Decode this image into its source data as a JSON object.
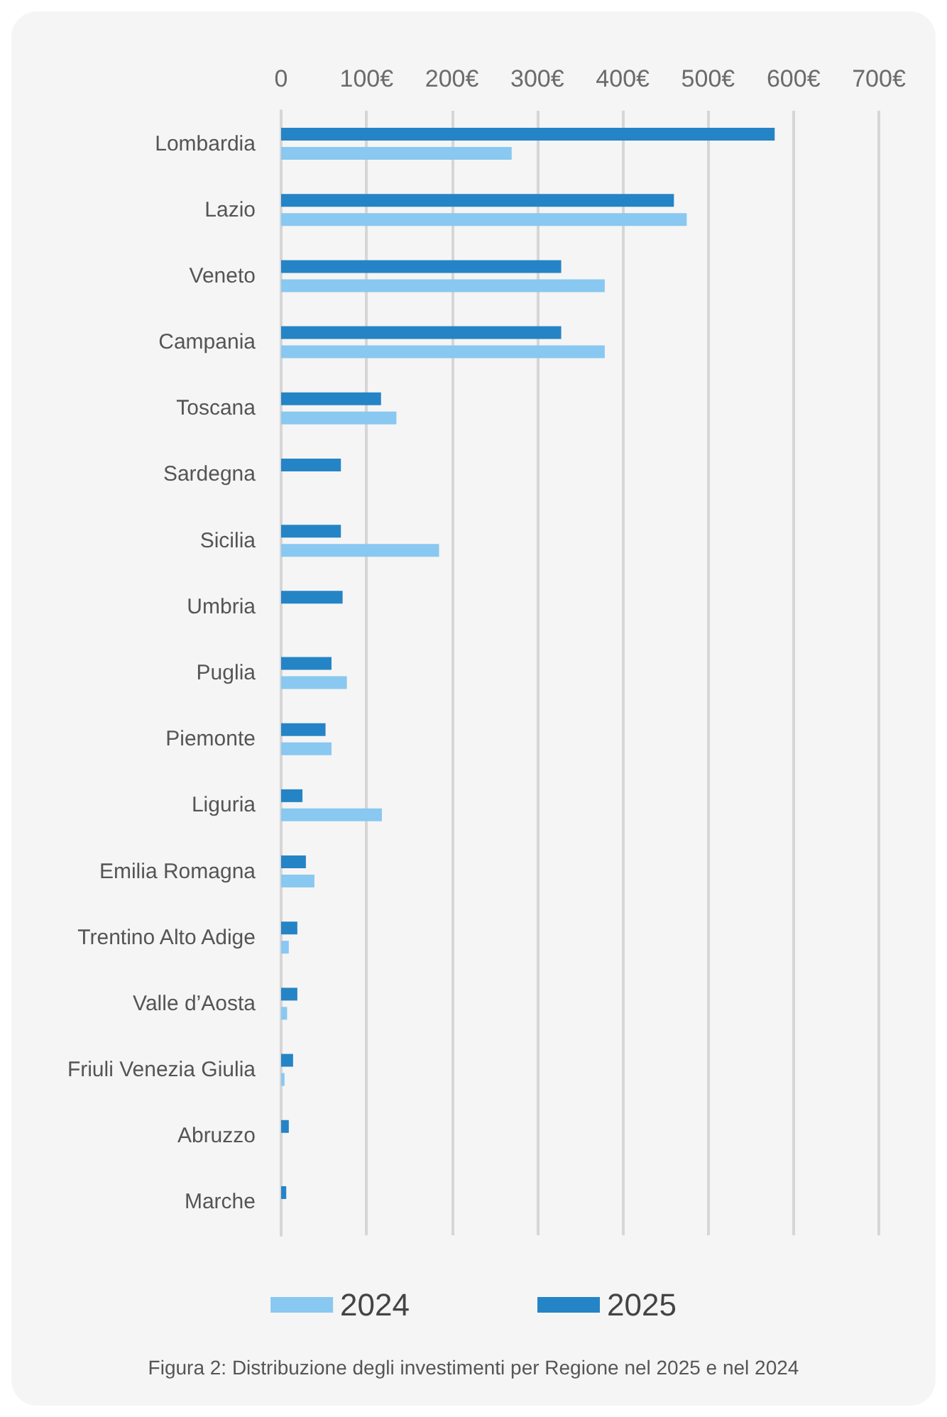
{
  "chart_data": {
    "type": "bar",
    "orientation": "horizontal",
    "categories": [
      "Lombardia",
      "Lazio",
      "Veneto",
      "Campania",
      "Toscana",
      "Sardegna",
      "Sicilia",
      "Umbria",
      "Puglia",
      "Piemonte",
      "Liguria",
      "Emilia Romagna",
      "Trentino Alto Adige",
      "Valle d’Aosta",
      "Friuli Venezia Giulia",
      "Abruzzo",
      "Marche"
    ],
    "series": [
      {
        "name": "2025",
        "color": "#2484c6",
        "values": [
          578,
          460,
          328,
          328,
          117,
          70,
          70,
          72,
          59,
          52,
          25,
          29,
          19,
          19,
          14,
          9,
          6
        ]
      },
      {
        "name": "2024",
        "color": "#89c8f0",
        "values": [
          270,
          475,
          379,
          379,
          135,
          null,
          185,
          null,
          77,
          59,
          118,
          39,
          9,
          7,
          4,
          null,
          null
        ]
      }
    ],
    "xlim": [
      0,
      700
    ],
    "xticks": [
      0,
      {
        "value": 100,
        "label": "100€"
      },
      {
        "value": 200,
        "label": "200€"
      },
      {
        "value": 300,
        "label": "300€"
      },
      {
        "value": 400,
        "label": "400€"
      },
      {
        "value": 500,
        "label": "500€"
      },
      {
        "value": 600,
        "label": "600€"
      },
      {
        "value": 700,
        "label": "700€"
      }
    ],
    "grid": "x",
    "legend": "bottom",
    "annotations": [
      "Figura 2: Distribuzione degli investimenti per Regione nel 2025 e nel 2024"
    ]
  }
}
